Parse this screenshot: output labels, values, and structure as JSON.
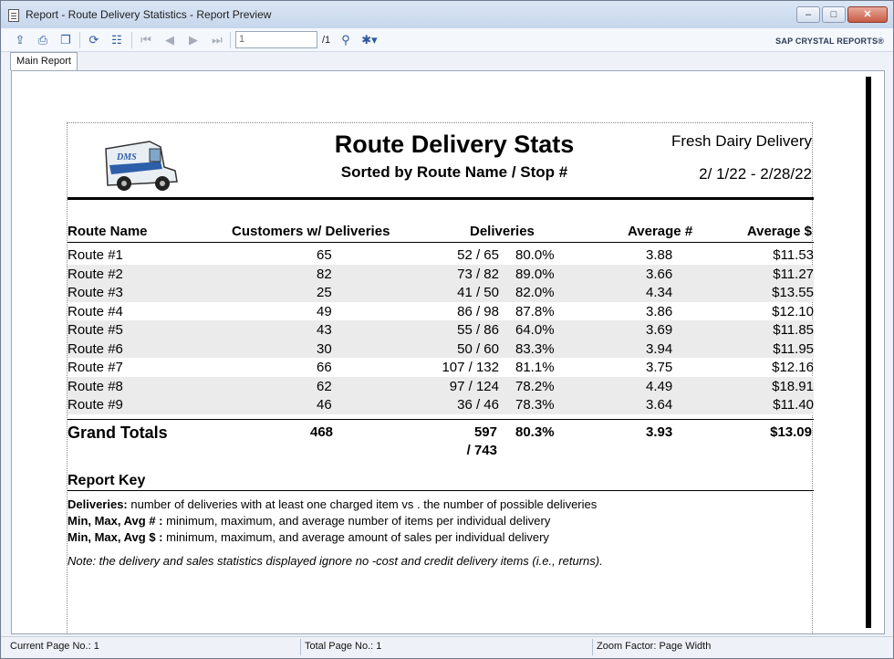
{
  "window": {
    "title": "Report - Route Delivery Statistics - Report Preview",
    "controls": {
      "minimize": "–",
      "maximize": "□",
      "close": "✕"
    }
  },
  "toolbar": {
    "page_value": "1",
    "page_total": "/1",
    "brand": "SAP CRYSTAL REPORTS®"
  },
  "tabs": [
    {
      "label": "Main Report"
    }
  ],
  "report": {
    "title": "Route Delivery Stats",
    "subtitle": "Sorted by Route Name / Stop #",
    "company": "Fresh Dairy Delivery",
    "date_range": "2/ 1/22 - 2/28/22",
    "logo_text": "DMS",
    "columns": {
      "route_name": "Route Name",
      "customers": "Customers w/ Deliveries",
      "deliveries": "Deliveries",
      "average_num": "Average #",
      "average_dollar": "Average $"
    },
    "rows": [
      {
        "route": "Route #1",
        "customers": "65",
        "deliveries": "52 / 65",
        "pct": "80.0%",
        "avg_num": "3.88",
        "avg_dollar": "$11.53"
      },
      {
        "route": "Route #2",
        "customers": "82",
        "deliveries": "73 / 82",
        "pct": "89.0%",
        "avg_num": "3.66",
        "avg_dollar": "$11.27"
      },
      {
        "route": "Route #3",
        "customers": "25",
        "deliveries": "41 / 50",
        "pct": "82.0%",
        "avg_num": "4.34",
        "avg_dollar": "$13.55"
      },
      {
        "route": "Route #4",
        "customers": "49",
        "deliveries": "86 / 98",
        "pct": "87.8%",
        "avg_num": "3.86",
        "avg_dollar": "$12.10"
      },
      {
        "route": "Route #5",
        "customers": "43",
        "deliveries": "55 / 86",
        "pct": "64.0%",
        "avg_num": "3.69",
        "avg_dollar": "$11.85"
      },
      {
        "route": "Route #6",
        "customers": "30",
        "deliveries": "50 / 60",
        "pct": "83.3%",
        "avg_num": "3.94",
        "avg_dollar": "$11.95"
      },
      {
        "route": "Route #7",
        "customers": "66",
        "deliveries": "107 / 132",
        "pct": "81.1%",
        "avg_num": "3.75",
        "avg_dollar": "$12.16"
      },
      {
        "route": "Route #8",
        "customers": "62",
        "deliveries": "97 / 124",
        "pct": "78.2%",
        "avg_num": "4.49",
        "avg_dollar": "$18.91"
      },
      {
        "route": "Route #9",
        "customers": "46",
        "deliveries": "36 / 46",
        "pct": "78.3%",
        "avg_num": "3.64",
        "avg_dollar": "$11.40"
      }
    ],
    "grand_totals": {
      "label": "Grand Totals",
      "customers": "468",
      "deliveries_top": "597",
      "deliveries_bottom": "/ 743",
      "pct": "80.3%",
      "avg_num": "3.93",
      "avg_dollar": "$13.09"
    },
    "key": {
      "title": "Report Key",
      "lines": [
        {
          "term": "Deliveries:",
          "text": " number of deliveries with at least one charged item vs  . the number of possible deliveries"
        },
        {
          "term": "Min, Max, Avg # :",
          "text": " minimum, maximum, and average number of items per individual delivery"
        },
        {
          "term": "Min, Max, Avg $ :",
          "text": " minimum, maximum, and average amount of sales per individual delivery"
        }
      ],
      "note": "Note: the delivery and sales statistics displayed ignore no   -cost and credit delivery items   (i.e., returns)."
    }
  },
  "statusbar": {
    "current_page": "Current Page No.: 1",
    "total_page": "Total Page No.: 1",
    "zoom": "Zoom Factor: Page Width"
  }
}
